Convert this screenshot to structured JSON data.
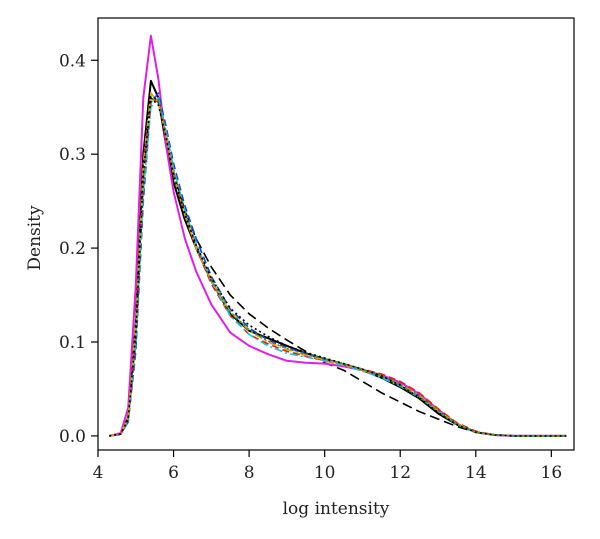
{
  "chart_data": {
    "type": "line",
    "title": "",
    "xlabel": "log intensity",
    "ylabel": "Density",
    "xlim": [
      4.0,
      16.6
    ],
    "ylim": [
      -0.015,
      0.445
    ],
    "xticks": [
      4,
      6,
      8,
      10,
      12,
      14,
      16
    ],
    "yticks": [
      0.0,
      0.1,
      0.2,
      0.3,
      0.4
    ],
    "ytick_labels": [
      "0.0",
      "0.1",
      "0.2",
      "0.3",
      "0.4"
    ],
    "grid": false,
    "legend": "none",
    "series": [
      {
        "color": "#000000",
        "dash": "solid",
        "points": [
          [
            4.3,
            0
          ],
          [
            4.6,
            0.002
          ],
          [
            4.8,
            0.02
          ],
          [
            5.0,
            0.12
          ],
          [
            5.2,
            0.3
          ],
          [
            5.4,
            0.378
          ],
          [
            5.6,
            0.36
          ],
          [
            5.8,
            0.31
          ],
          [
            6.0,
            0.27
          ],
          [
            6.3,
            0.23
          ],
          [
            6.6,
            0.2
          ],
          [
            7.0,
            0.165
          ],
          [
            7.5,
            0.13
          ],
          [
            8.0,
            0.112
          ],
          [
            8.5,
            0.104
          ],
          [
            9.0,
            0.096
          ],
          [
            9.5,
            0.088
          ],
          [
            10.0,
            0.082
          ],
          [
            10.5,
            0.076
          ],
          [
            11.0,
            0.07
          ],
          [
            11.5,
            0.062
          ],
          [
            12.0,
            0.052
          ],
          [
            12.5,
            0.04
          ],
          [
            13.0,
            0.024
          ],
          [
            13.5,
            0.012
          ],
          [
            14.0,
            0.004
          ],
          [
            14.5,
            0.001
          ],
          [
            15.0,
            0
          ],
          [
            16.4,
            0
          ]
        ]
      },
      {
        "color": "#000000",
        "dash": "longdash",
        "points": [
          [
            4.3,
            0
          ],
          [
            4.6,
            0.002
          ],
          [
            4.8,
            0.015
          ],
          [
            5.0,
            0.1
          ],
          [
            5.2,
            0.27
          ],
          [
            5.4,
            0.365
          ],
          [
            5.6,
            0.355
          ],
          [
            5.8,
            0.32
          ],
          [
            6.0,
            0.28
          ],
          [
            6.3,
            0.24
          ],
          [
            6.6,
            0.21
          ],
          [
            7.0,
            0.18
          ],
          [
            7.5,
            0.15
          ],
          [
            8.0,
            0.13
          ],
          [
            8.5,
            0.115
          ],
          [
            9.0,
            0.102
          ],
          [
            9.5,
            0.09
          ],
          [
            10.0,
            0.078
          ],
          [
            10.5,
            0.07
          ],
          [
            11.0,
            0.058
          ],
          [
            11.5,
            0.046
          ],
          [
            12.0,
            0.036
          ],
          [
            12.5,
            0.026
          ],
          [
            13.0,
            0.018
          ],
          [
            13.5,
            0.01
          ],
          [
            14.0,
            0.004
          ],
          [
            14.5,
            0.001
          ],
          [
            15.0,
            0
          ],
          [
            16.4,
            0
          ]
        ]
      },
      {
        "color": "#e020e0",
        "dash": "solid",
        "points": [
          [
            4.3,
            0
          ],
          [
            4.6,
            0.003
          ],
          [
            4.8,
            0.03
          ],
          [
            5.0,
            0.16
          ],
          [
            5.2,
            0.36
          ],
          [
            5.4,
            0.426
          ],
          [
            5.6,
            0.38
          ],
          [
            5.8,
            0.31
          ],
          [
            6.0,
            0.26
          ],
          [
            6.3,
            0.21
          ],
          [
            6.6,
            0.175
          ],
          [
            7.0,
            0.14
          ],
          [
            7.5,
            0.11
          ],
          [
            8.0,
            0.096
          ],
          [
            8.5,
            0.087
          ],
          [
            9.0,
            0.08
          ],
          [
            9.5,
            0.078
          ],
          [
            10.0,
            0.077
          ],
          [
            10.5,
            0.074
          ],
          [
            11.0,
            0.07
          ],
          [
            11.5,
            0.065
          ],
          [
            12.0,
            0.057
          ],
          [
            12.5,
            0.045
          ],
          [
            13.0,
            0.028
          ],
          [
            13.5,
            0.013
          ],
          [
            14.0,
            0.004
          ],
          [
            14.5,
            0.001
          ],
          [
            15.0,
            0
          ],
          [
            16.4,
            0
          ]
        ]
      },
      {
        "color": "#2040d0",
        "dash": "dash",
        "points": [
          [
            4.3,
            0
          ],
          [
            4.6,
            0.002
          ],
          [
            4.8,
            0.015
          ],
          [
            5.0,
            0.09
          ],
          [
            5.2,
            0.25
          ],
          [
            5.4,
            0.355
          ],
          [
            5.6,
            0.365
          ],
          [
            5.8,
            0.33
          ],
          [
            6.0,
            0.29
          ],
          [
            6.3,
            0.245
          ],
          [
            6.6,
            0.21
          ],
          [
            7.0,
            0.17
          ],
          [
            7.5,
            0.135
          ],
          [
            8.0,
            0.115
          ],
          [
            8.5,
            0.102
          ],
          [
            9.0,
            0.094
          ],
          [
            9.5,
            0.088
          ],
          [
            10.0,
            0.082
          ],
          [
            10.5,
            0.077
          ],
          [
            11.0,
            0.071
          ],
          [
            11.5,
            0.064
          ],
          [
            12.0,
            0.055
          ],
          [
            12.5,
            0.043
          ],
          [
            13.0,
            0.027
          ],
          [
            13.5,
            0.013
          ],
          [
            14.0,
            0.004
          ],
          [
            14.5,
            0.001
          ],
          [
            15.0,
            0
          ],
          [
            16.4,
            0
          ]
        ]
      },
      {
        "color": "#e02020",
        "dash": "dash",
        "points": [
          [
            4.3,
            0
          ],
          [
            4.6,
            0.002
          ],
          [
            4.8,
            0.018
          ],
          [
            5.0,
            0.11
          ],
          [
            5.2,
            0.28
          ],
          [
            5.4,
            0.36
          ],
          [
            5.6,
            0.355
          ],
          [
            5.8,
            0.32
          ],
          [
            6.0,
            0.28
          ],
          [
            6.3,
            0.235
          ],
          [
            6.6,
            0.2
          ],
          [
            7.0,
            0.162
          ],
          [
            7.5,
            0.128
          ],
          [
            8.0,
            0.108
          ],
          [
            8.5,
            0.098
          ],
          [
            9.0,
            0.09
          ],
          [
            9.5,
            0.085
          ],
          [
            10.0,
            0.08
          ],
          [
            10.5,
            0.076
          ],
          [
            11.0,
            0.071
          ],
          [
            11.5,
            0.066
          ],
          [
            12.0,
            0.058
          ],
          [
            12.5,
            0.046
          ],
          [
            13.0,
            0.029
          ],
          [
            13.5,
            0.014
          ],
          [
            14.0,
            0.005
          ],
          [
            14.5,
            0.001
          ],
          [
            15.0,
            0
          ],
          [
            16.4,
            0
          ]
        ]
      },
      {
        "color": "#20c0d0",
        "dash": "dashdot",
        "points": [
          [
            4.3,
            0
          ],
          [
            4.6,
            0.002
          ],
          [
            4.8,
            0.016
          ],
          [
            5.0,
            0.1
          ],
          [
            5.2,
            0.26
          ],
          [
            5.4,
            0.35
          ],
          [
            5.6,
            0.36
          ],
          [
            5.8,
            0.325
          ],
          [
            6.0,
            0.285
          ],
          [
            6.3,
            0.24
          ],
          [
            6.6,
            0.205
          ],
          [
            7.0,
            0.165
          ],
          [
            7.5,
            0.128
          ],
          [
            8.0,
            0.108
          ],
          [
            8.5,
            0.096
          ],
          [
            9.0,
            0.088
          ],
          [
            9.5,
            0.084
          ],
          [
            10.0,
            0.08
          ],
          [
            10.5,
            0.075
          ],
          [
            11.0,
            0.069
          ],
          [
            11.5,
            0.062
          ],
          [
            12.0,
            0.053
          ],
          [
            12.5,
            0.041
          ],
          [
            13.0,
            0.026
          ],
          [
            13.5,
            0.012
          ],
          [
            14.0,
            0.004
          ],
          [
            14.5,
            0.001
          ],
          [
            15.0,
            0
          ],
          [
            16.4,
            0
          ]
        ]
      },
      {
        "color": "#e0a000",
        "dash": "dashdot",
        "points": [
          [
            4.3,
            0
          ],
          [
            4.6,
            0.002
          ],
          [
            4.8,
            0.02
          ],
          [
            5.0,
            0.12
          ],
          [
            5.2,
            0.29
          ],
          [
            5.4,
            0.365
          ],
          [
            5.6,
            0.355
          ],
          [
            5.8,
            0.32
          ],
          [
            6.0,
            0.278
          ],
          [
            6.3,
            0.235
          ],
          [
            6.6,
            0.2
          ],
          [
            7.0,
            0.165
          ],
          [
            7.5,
            0.132
          ],
          [
            8.0,
            0.112
          ],
          [
            8.5,
            0.1
          ],
          [
            9.0,
            0.092
          ],
          [
            9.5,
            0.086
          ],
          [
            10.0,
            0.081
          ],
          [
            10.5,
            0.076
          ],
          [
            11.0,
            0.07
          ],
          [
            11.5,
            0.064
          ],
          [
            12.0,
            0.055
          ],
          [
            12.5,
            0.043
          ],
          [
            13.0,
            0.027
          ],
          [
            13.5,
            0.013
          ],
          [
            14.0,
            0.004
          ],
          [
            14.5,
            0.001
          ],
          [
            15.0,
            0
          ],
          [
            16.4,
            0
          ]
        ]
      },
      {
        "color": "#20a020",
        "dash": "dot",
        "points": [
          [
            4.3,
            0
          ],
          [
            4.6,
            0.002
          ],
          [
            4.8,
            0.017
          ],
          [
            5.0,
            0.105
          ],
          [
            5.2,
            0.27
          ],
          [
            5.4,
            0.358
          ],
          [
            5.6,
            0.358
          ],
          [
            5.8,
            0.322
          ],
          [
            6.0,
            0.282
          ],
          [
            6.3,
            0.238
          ],
          [
            6.6,
            0.203
          ],
          [
            7.0,
            0.166
          ],
          [
            7.5,
            0.132
          ],
          [
            8.0,
            0.113
          ],
          [
            8.5,
            0.101
          ],
          [
            9.0,
            0.093
          ],
          [
            9.5,
            0.087
          ],
          [
            10.0,
            0.082
          ],
          [
            10.5,
            0.077
          ],
          [
            11.0,
            0.071
          ],
          [
            11.5,
            0.064
          ],
          [
            12.0,
            0.054
          ],
          [
            12.5,
            0.042
          ],
          [
            13.0,
            0.026
          ],
          [
            13.5,
            0.012
          ],
          [
            14.0,
            0.004
          ],
          [
            14.5,
            0.001
          ],
          [
            15.0,
            0
          ],
          [
            16.4,
            0
          ]
        ]
      },
      {
        "color": "#000000",
        "dash": "dot",
        "points": [
          [
            4.3,
            0
          ],
          [
            4.6,
            0.002
          ],
          [
            4.8,
            0.018
          ],
          [
            5.0,
            0.11
          ],
          [
            5.2,
            0.28
          ],
          [
            5.4,
            0.36
          ],
          [
            5.6,
            0.352
          ],
          [
            5.8,
            0.318
          ],
          [
            6.0,
            0.278
          ],
          [
            6.3,
            0.236
          ],
          [
            6.6,
            0.203
          ],
          [
            7.0,
            0.168
          ],
          [
            7.5,
            0.136
          ],
          [
            8.0,
            0.118
          ],
          [
            8.5,
            0.106
          ],
          [
            9.0,
            0.096
          ],
          [
            9.5,
            0.089
          ],
          [
            10.0,
            0.083
          ],
          [
            10.5,
            0.077
          ],
          [
            11.0,
            0.071
          ],
          [
            11.5,
            0.064
          ],
          [
            12.0,
            0.054
          ],
          [
            12.5,
            0.041
          ],
          [
            13.0,
            0.025
          ],
          [
            13.5,
            0.012
          ],
          [
            14.0,
            0.004
          ],
          [
            14.5,
            0.001
          ],
          [
            15.0,
            0
          ],
          [
            16.4,
            0
          ]
        ]
      }
    ]
  }
}
